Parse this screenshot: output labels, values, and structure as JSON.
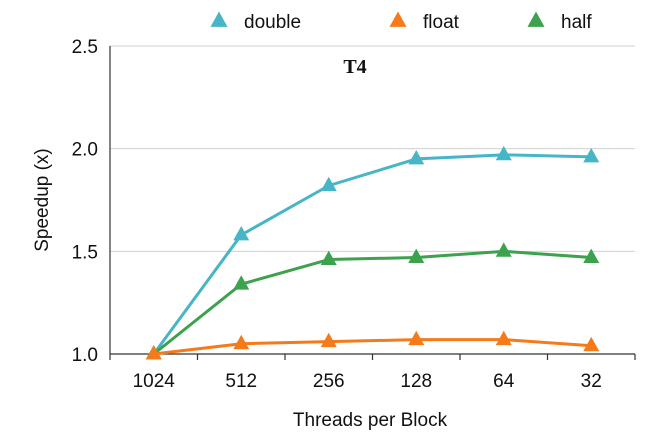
{
  "chart_data": {
    "type": "line",
    "title": "T4",
    "xlabel": "Threads per Block",
    "ylabel": "Speedup (x)",
    "categories": [
      "1024",
      "512",
      "256",
      "128",
      "64",
      "32"
    ],
    "ylim": [
      1.0,
      2.5
    ],
    "yticks": [
      "1.0",
      "1.5",
      "2.0",
      "2.5"
    ],
    "grid": "horizontal",
    "legend_position": "top",
    "series": [
      {
        "name": "double",
        "color": "#46b5c5",
        "marker": "triangle",
        "values": [
          1.0,
          1.58,
          1.82,
          1.95,
          1.97,
          1.96
        ]
      },
      {
        "name": "float",
        "color": "#f57a1a",
        "marker": "triangle",
        "values": [
          1.0,
          1.05,
          1.06,
          1.07,
          1.07,
          1.04
        ]
      },
      {
        "name": "half",
        "color": "#3ca24e",
        "marker": "triangle",
        "values": [
          1.0,
          1.34,
          1.46,
          1.47,
          1.5,
          1.47
        ]
      }
    ]
  }
}
